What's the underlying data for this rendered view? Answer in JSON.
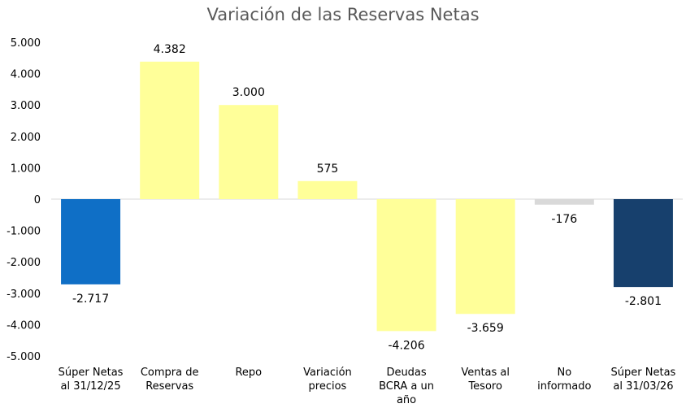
{
  "chart_data": {
    "type": "bar",
    "title": "Variación de las Reservas Netas",
    "xlabel": "",
    "ylabel": "",
    "ylim": [
      -5000,
      5000
    ],
    "yticks": [
      5000,
      4000,
      3000,
      2000,
      1000,
      0,
      -1000,
      -2000,
      -3000,
      -4000,
      -5000
    ],
    "ytick_labels": [
      "5.000",
      "4.000",
      "3.000",
      "2.000",
      "1.000",
      "0",
      "-1.000",
      "-2.000",
      "-3.000",
      "-4.000",
      "-5.000"
    ],
    "grid": false,
    "legend": "none",
    "categories": [
      [
        "Súper Netas",
        "al 31/12/25"
      ],
      [
        "Compra de",
        "Reservas"
      ],
      [
        "Repo"
      ],
      [
        "Variación",
        "precios"
      ],
      [
        "Deudas",
        "BCRA a un",
        "año"
      ],
      [
        "Ventas al",
        "Tesoro"
      ],
      [
        "No",
        "informado"
      ],
      [
        "Súper Netas",
        "al 31/03/26"
      ]
    ],
    "values": [
      -2717,
      4382,
      3000,
      575,
      -4206,
      -3659,
      -176,
      -2801
    ],
    "value_labels": [
      "-2.717",
      "4.382",
      "3.000",
      "575",
      "-4.206",
      "-3.659",
      "-176",
      "-2.801"
    ],
    "colors": [
      "#0f6fc6",
      "#ffff99",
      "#ffff99",
      "#ffff99",
      "#ffff99",
      "#ffff99",
      "#d9d9d9",
      "#17406d"
    ]
  }
}
